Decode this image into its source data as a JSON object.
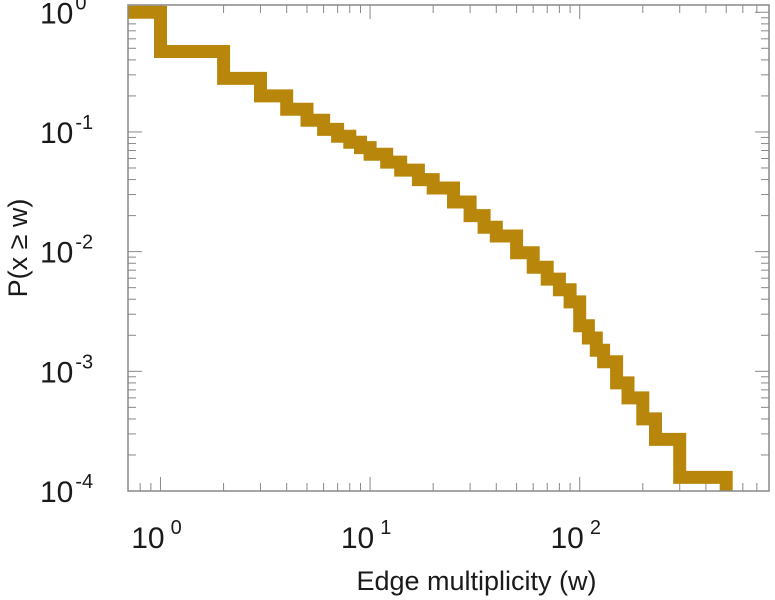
{
  "chart_data": {
    "type": "line",
    "step": true,
    "xlabel": "Edge multiplicity (w)",
    "ylabel": "P(x ≥ w)",
    "xscale": "log",
    "yscale": "log",
    "xlim": [
      0.7,
      800
    ],
    "ylim": [
      0.0001,
      1.15
    ],
    "grid": false,
    "series_color": "#B8860B",
    "x_ticks": [
      {
        "base": "10",
        "exp": "0"
      },
      {
        "base": "10",
        "exp": "1"
      },
      {
        "base": "10",
        "exp": "2"
      }
    ],
    "y_ticks": [
      {
        "base": "10",
        "exp": "0"
      },
      {
        "base": "10",
        "exp": "-1"
      },
      {
        "base": "10",
        "exp": "-2"
      },
      {
        "base": "10",
        "exp": "-3"
      },
      {
        "base": "10",
        "exp": "-4"
      }
    ],
    "series": [
      {
        "x": [
          0.7,
          1,
          1,
          2,
          2,
          3,
          3,
          4,
          4,
          5,
          5,
          6,
          6,
          7,
          7,
          8,
          8,
          9,
          9,
          10,
          10,
          12,
          12,
          14,
          14,
          17,
          17,
          20,
          20,
          25,
          25,
          30,
          30,
          35,
          35,
          40,
          40,
          50,
          50,
          60,
          60,
          70,
          70,
          80,
          80,
          90,
          90,
          100,
          100,
          110,
          110,
          120,
          120,
          130,
          130,
          150,
          150,
          170,
          170,
          200,
          200,
          230,
          230,
          300,
          300,
          500,
          500
        ],
        "y": [
          1,
          1,
          0.47,
          0.47,
          0.28,
          0.28,
          0.2,
          0.2,
          0.155,
          0.155,
          0.125,
          0.125,
          0.105,
          0.105,
          0.092,
          0.092,
          0.082,
          0.082,
          0.074,
          0.074,
          0.065,
          0.065,
          0.056,
          0.056,
          0.048,
          0.048,
          0.04,
          0.04,
          0.034,
          0.034,
          0.026,
          0.026,
          0.02,
          0.02,
          0.016,
          0.016,
          0.0135,
          0.0135,
          0.0098,
          0.0098,
          0.0074,
          0.0074,
          0.0059,
          0.0059,
          0.0048,
          0.0048,
          0.0038,
          0.0038,
          0.0024,
          0.0024,
          0.0019,
          0.0019,
          0.0015,
          0.0015,
          0.0012,
          0.0012,
          0.0008,
          0.0008,
          0.0006,
          0.0006,
          0.0004,
          0.0004,
          0.00027,
          0.00027,
          0.00013,
          0.00013,
          0.0001
        ]
      }
    ]
  }
}
